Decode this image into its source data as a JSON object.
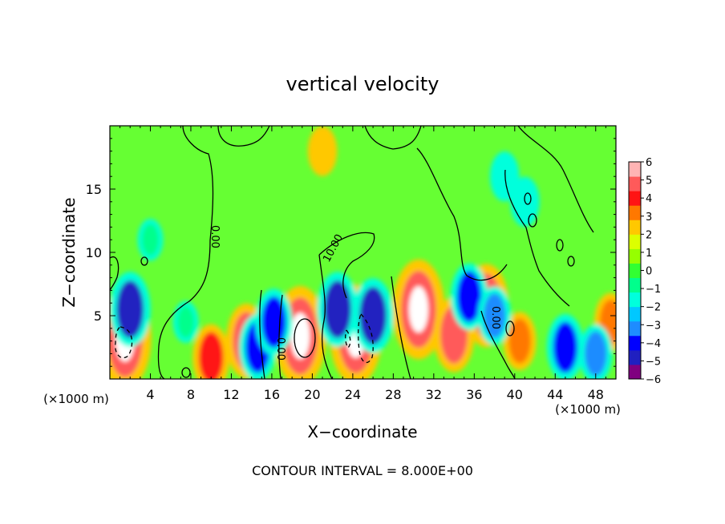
{
  "chart_data": {
    "type": "heatmap",
    "title": "vertical velocity",
    "xlabel": "X−coordinate",
    "ylabel": "Z−coordinate",
    "x_unit": "(×1000 m)",
    "y_unit": "(×1000 m)",
    "footer": "CONTOUR INTERVAL = 8.000E+00",
    "xlim": [
      0,
      50
    ],
    "ylim": [
      0,
      20
    ],
    "x_ticks": [
      4,
      8,
      12,
      16,
      20,
      24,
      28,
      32,
      36,
      40,
      44,
      48
    ],
    "y_ticks": [
      5,
      10,
      15
    ],
    "colorbar": {
      "vmin": -6,
      "vmax": 6,
      "ticks": [
        "6",
        "5",
        "4",
        "3",
        "2",
        "1",
        "0",
        "−1",
        "−2",
        "−3",
        "−4",
        "−5",
        "−6"
      ],
      "colors": [
        "#800080",
        "#2020c0",
        "#0000ff",
        "#1e8cff",
        "#00c8ff",
        "#00ffdc",
        "#00ff8c",
        "#32ff32",
        "#96ff00",
        "#dcff00",
        "#ffc800",
        "#ff7800",
        "#ff1414",
        "#ff5a5a",
        "#ffb4b4"
      ]
    },
    "contour_labels": [
      "0.00",
      "10.00",
      "0.00",
      "0.00"
    ],
    "features": [
      {
        "x": 1.5,
        "z": 3.2,
        "value": 8
      },
      {
        "x": 10.0,
        "z": 1.7,
        "value": 4
      },
      {
        "x": 13.5,
        "z": 3.0,
        "value": 5
      },
      {
        "x": 18.8,
        "z": 3.4,
        "value": 8
      },
      {
        "x": 24.3,
        "z": 3.5,
        "value": 8
      },
      {
        "x": 30.5,
        "z": 5.5,
        "value": 8
      },
      {
        "x": 34.0,
        "z": 3.5,
        "value": 5
      },
      {
        "x": 37.2,
        "z": 5.8,
        "value": 6
      },
      {
        "x": 40.5,
        "z": 3.0,
        "value": 3
      },
      {
        "x": 49.5,
        "z": 4.5,
        "value": 3
      },
      {
        "x": 2.0,
        "z": 5.5,
        "value": -5
      },
      {
        "x": 7.5,
        "z": 4.5,
        "value": -1
      },
      {
        "x": 14.6,
        "z": 2.5,
        "value": -4
      },
      {
        "x": 16.2,
        "z": 4.5,
        "value": -4
      },
      {
        "x": 22.5,
        "z": 5.5,
        "value": -5
      },
      {
        "x": 26.0,
        "z": 5.0,
        "value": -5
      },
      {
        "x": 35.5,
        "z": 6.5,
        "value": -4
      },
      {
        "x": 38.0,
        "z": 5.0,
        "value": -3
      },
      {
        "x": 45.0,
        "z": 2.5,
        "value": -4
      },
      {
        "x": 48.0,
        "z": 2.0,
        "value": -3
      },
      {
        "x": 41.0,
        "z": 14.0,
        "value": -2
      },
      {
        "x": 39.0,
        "z": 16.0,
        "value": -2
      },
      {
        "x": 4.0,
        "z": 11.0,
        "value": -1
      },
      {
        "x": 21.0,
        "z": 18.0,
        "value": 2
      }
    ]
  }
}
